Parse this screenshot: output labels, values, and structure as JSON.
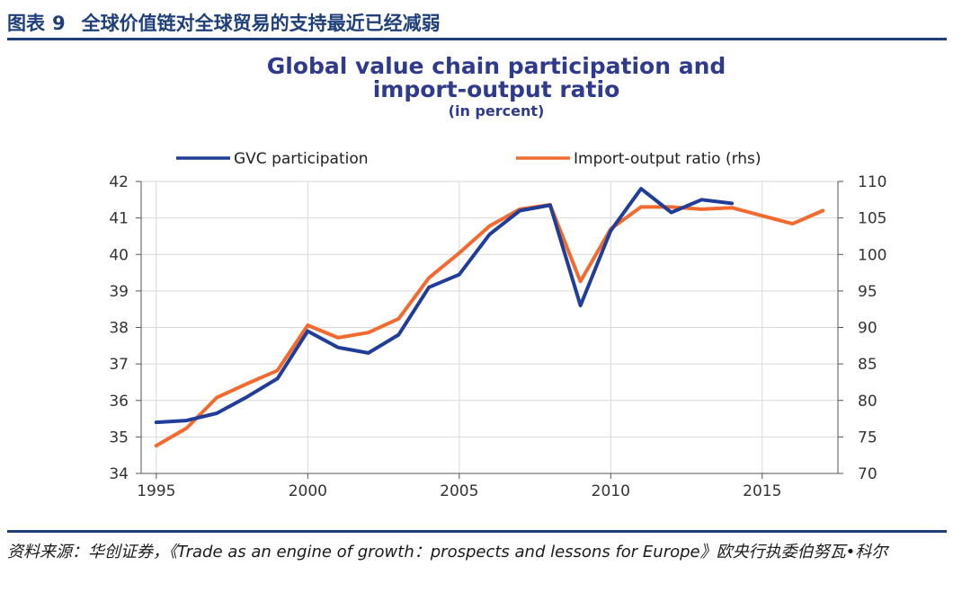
{
  "figure": {
    "label": "图表",
    "number": "9",
    "caption": "全球价值链对全球贸易的支持最近已经减弱"
  },
  "source_note": "资料来源：华创证券，《Trade as an engine of growth：prospects and lessons for Europe》欧央行执委伯努瓦•科尔",
  "colors": {
    "gvc": "#1f3d99",
    "import": "#f26a2e",
    "grid": "#d9d9d9",
    "rule": "#1f3f7a"
  },
  "chart_data": {
    "type": "line",
    "title": "Global value chain participation and",
    "title_line2": "import-output ratio",
    "subtitle": "(in percent)",
    "xlabel": "",
    "ylabel": "",
    "x_ticks": [
      "1995",
      "2000",
      "2005",
      "2010",
      "2015"
    ],
    "xlim": [
      1994.5,
      2017.5
    ],
    "ylim": [
      34,
      42
    ],
    "y_ticks": [
      "42",
      "41",
      "40",
      "39",
      "38",
      "37",
      "36",
      "35",
      "34"
    ],
    "y2lim": [
      70,
      110
    ],
    "y2_ticks": [
      "110",
      "105",
      "100",
      "95",
      "90",
      "85",
      "80",
      "75",
      "70"
    ],
    "grid": true,
    "legend": "top",
    "series": [
      {
        "name": "GVC participation",
        "axis": "left",
        "x": [
          1995,
          1996,
          1997,
          1998,
          1999,
          2000,
          2001,
          2002,
          2003,
          2004,
          2005,
          2006,
          2007,
          2008,
          2009,
          2010,
          2011,
          2012,
          2013,
          2014
        ],
        "values": [
          35.4,
          35.45,
          35.65,
          36.1,
          36.6,
          37.9,
          37.45,
          37.3,
          37.8,
          39.1,
          39.45,
          40.55,
          41.2,
          41.35,
          38.6,
          40.65,
          41.8,
          41.15,
          41.5,
          41.4
        ]
      },
      {
        "name": "Import-output ratio (rhs)",
        "axis": "right",
        "x": [
          1995,
          1996,
          1997,
          1998,
          1999,
          2000,
          2001,
          2002,
          2003,
          2004,
          2005,
          2006,
          2007,
          2008,
          2009,
          2010,
          2011,
          2012,
          2013,
          2014,
          2015,
          2016,
          2017
        ],
        "values": [
          73.8,
          76.2,
          80.4,
          82.3,
          84.1,
          90.3,
          88.6,
          89.3,
          91.2,
          96.8,
          100.2,
          103.9,
          106.2,
          106.8,
          96.3,
          103.5,
          106.5,
          106.5,
          106.2,
          106.4,
          105.3,
          104.2,
          106.0
        ]
      }
    ]
  }
}
